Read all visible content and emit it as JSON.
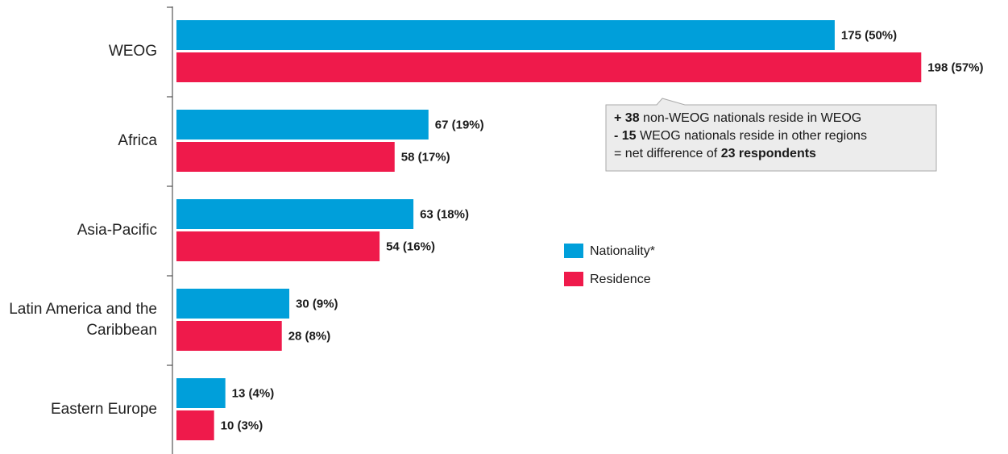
{
  "chart_data": {
    "type": "bar",
    "orientation": "horizontal",
    "categories": [
      "WEOG",
      "Africa",
      "Asia-Pacific",
      "Latin America and the Caribbean",
      "Eastern Europe"
    ],
    "series": [
      {
        "name": "Nationality*",
        "color": "#009fda",
        "values": [
          175,
          67,
          63,
          30,
          13
        ],
        "value_labels": [
          "175 (50%)",
          "67 (19%)",
          "63 (18%)",
          "30 (9%)",
          "13 (4%)"
        ]
      },
      {
        "name": "Residence",
        "color": "#ef1a4b",
        "values": [
          198,
          58,
          54,
          28,
          10
        ],
        "value_labels": [
          "198 (57%)",
          "58 (17%)",
          "54 (16%)",
          "28 (8%)",
          "10 (3%)"
        ]
      }
    ],
    "xlim": [
      0,
      220
    ],
    "annotation": {
      "lines": [
        [
          {
            "text": "+ 38",
            "bold": true
          },
          {
            "text": " non-WEOG nationals reside in WEOG",
            "bold": false
          }
        ],
        [
          {
            "text": "- 15",
            "bold": true
          },
          {
            "text": " WEOG nationals reside in other regions",
            "bold": false
          }
        ],
        [
          {
            "text": "= net difference of ",
            "bold": false
          },
          {
            "text": "23 respondents",
            "bold": true
          }
        ]
      ]
    }
  }
}
